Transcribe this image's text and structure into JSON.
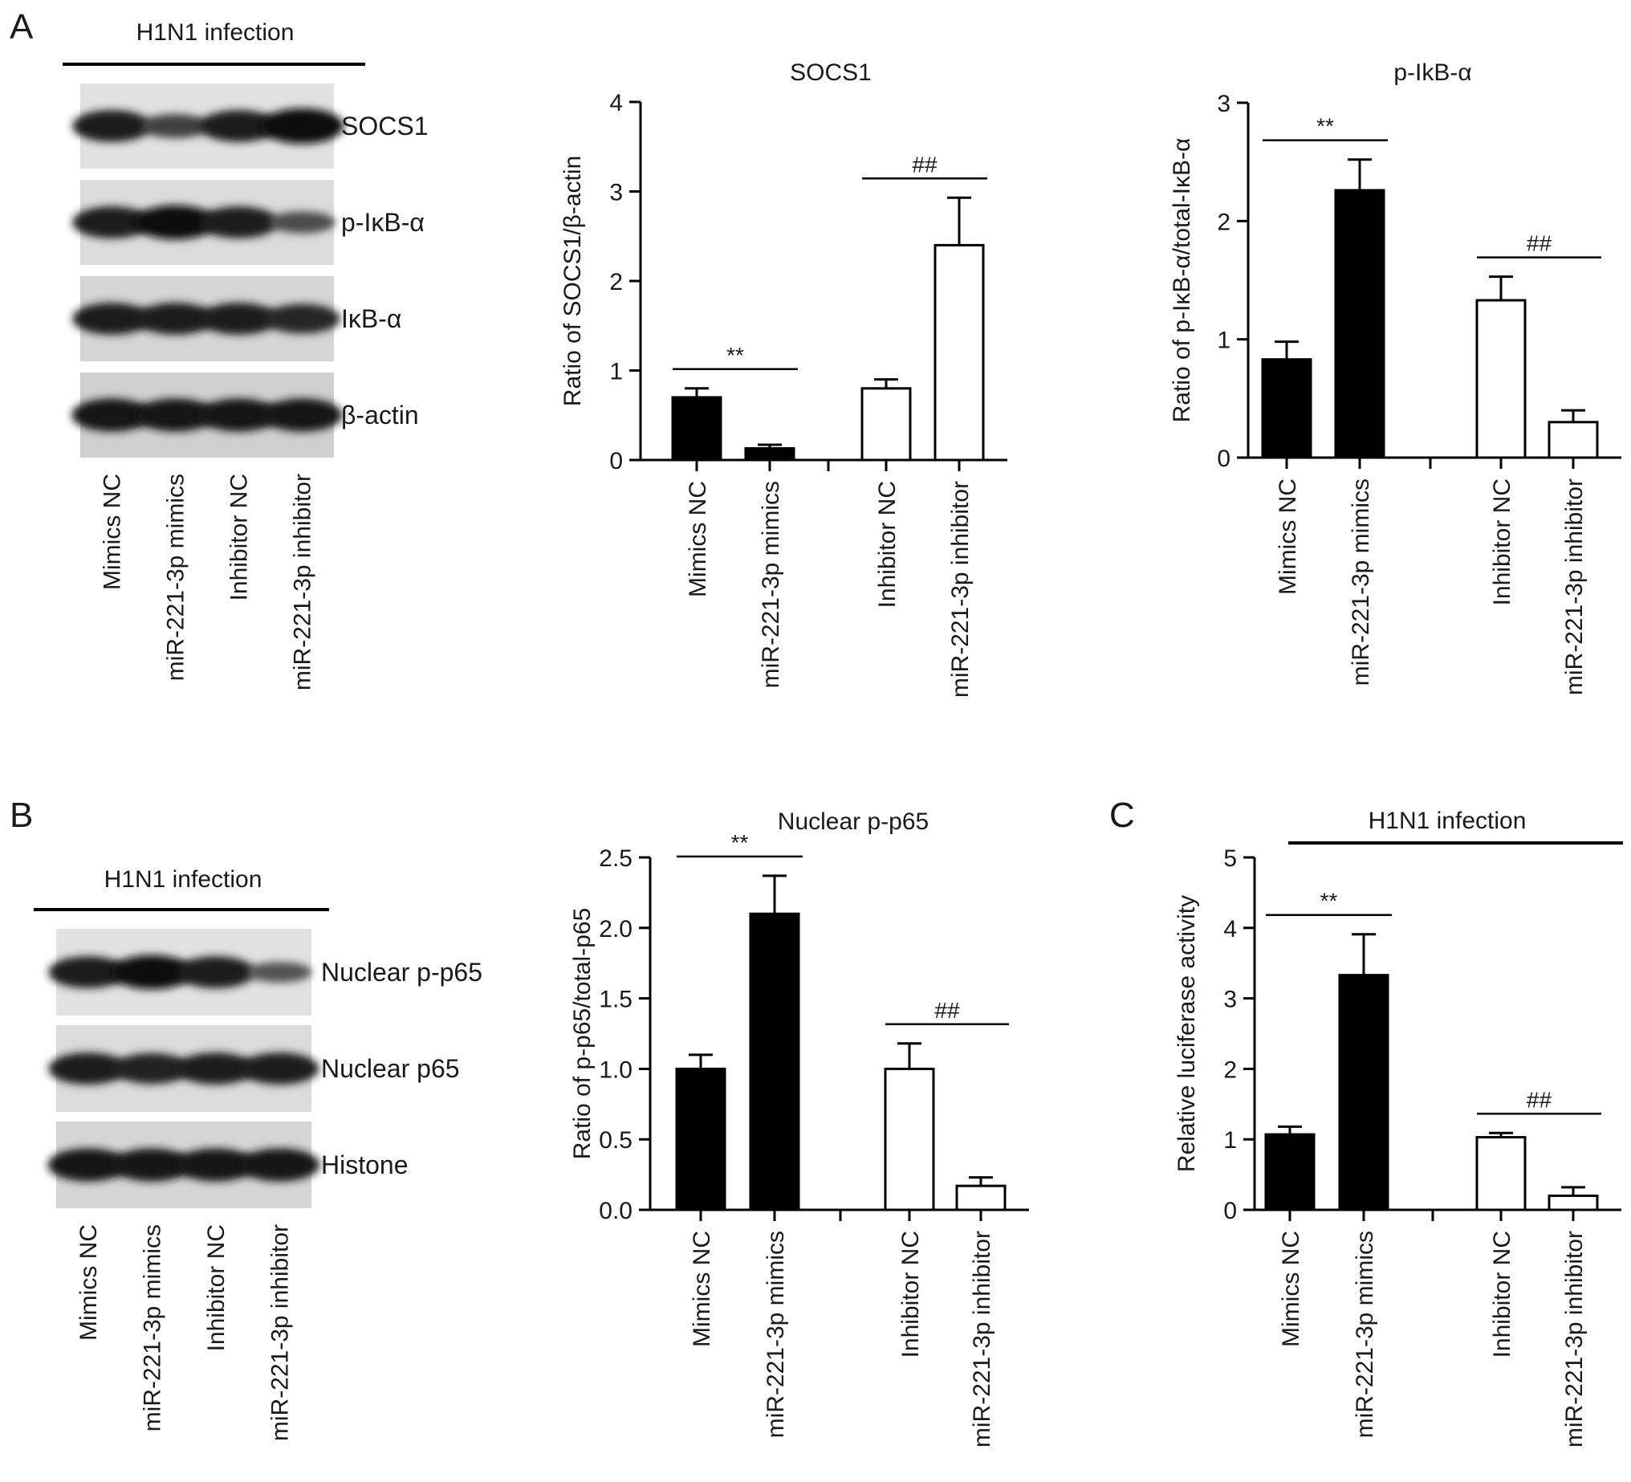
{
  "panel_letters": [
    "A",
    "B",
    "C"
  ],
  "groups": [
    "Mimics NC",
    "miR-221-3p mimics",
    "Inhibitor NC",
    "miR-221-3p inhibitor"
  ],
  "blot_a": {
    "header": "H1N1 infection",
    "bands": [
      {
        "label": "SOCS1",
        "intensity": [
          0.85,
          0.5,
          0.85,
          1.0
        ]
      },
      {
        "label": "p-IκB-α",
        "intensity": [
          0.85,
          0.95,
          0.85,
          0.4
        ]
      },
      {
        "label": "IκB-α",
        "intensity": [
          0.85,
          0.85,
          0.85,
          0.75
        ]
      },
      {
        "label": "β-actin",
        "intensity": [
          0.9,
          0.9,
          0.9,
          0.9
        ]
      }
    ]
  },
  "blot_b": {
    "header": "H1N1 infection",
    "bands": [
      {
        "label": "Nuclear p-p65",
        "intensity": [
          0.85,
          0.95,
          0.85,
          0.35
        ]
      },
      {
        "label": "Nuclear p65",
        "intensity": [
          0.85,
          0.8,
          0.85,
          0.85
        ]
      },
      {
        "label": "Histone",
        "intensity": [
          0.9,
          0.9,
          0.9,
          0.9
        ]
      }
    ]
  },
  "chart_data": [
    {
      "type": "bar",
      "title": "SOCS1",
      "ylabel": "Ratio of SOCS1/β-actin",
      "ylim": [
        0,
        4
      ],
      "yticks": [
        "0",
        "1",
        "2",
        "3",
        "4"
      ],
      "categories": [
        "Mimics NC",
        "miR-221-3p mimics",
        "Inhibitor NC",
        "miR-221-3p inhibitor"
      ],
      "values": [
        0.7,
        0.13,
        0.8,
        2.4
      ],
      "errors": [
        0.1,
        0.04,
        0.1,
        0.53
      ],
      "fills": [
        "#000000",
        "#000000",
        "#ffffff",
        "#ffffff"
      ],
      "significance": [
        {
          "label": "**",
          "pair": [
            0,
            1
          ]
        },
        {
          "label": "##",
          "pair": [
            2,
            3
          ]
        }
      ]
    },
    {
      "type": "bar",
      "title": "p-IkB-α",
      "ylabel": "Ratio of p-IκB-α/total-IκB-α",
      "ylim": [
        0,
        3
      ],
      "yticks": [
        "0",
        "1",
        "2",
        "3"
      ],
      "categories": [
        "Mimics NC",
        "miR-221-3p mimics",
        "Inhibitor NC",
        "miR-221-3p inhibitor"
      ],
      "values": [
        0.83,
        2.26,
        1.33,
        0.3
      ],
      "errors": [
        0.15,
        0.26,
        0.2,
        0.1
      ],
      "fills": [
        "#000000",
        "#000000",
        "#ffffff",
        "#ffffff"
      ],
      "significance": [
        {
          "label": "**",
          "pair": [
            0,
            1
          ]
        },
        {
          "label": "##",
          "pair": [
            2,
            3
          ]
        }
      ]
    },
    {
      "type": "bar",
      "title": "Nuclear p-p65",
      "ylabel": "Ratio of p-p65/total-p65",
      "ylim": [
        0,
        2.5
      ],
      "yticks": [
        "0.0",
        "0.5",
        "1.0",
        "1.5",
        "2.0",
        "2.5"
      ],
      "categories": [
        "Mimics NC",
        "miR-221-3p mimics",
        "Inhibitor NC",
        "miR-221-3p inhibitor"
      ],
      "values": [
        1.0,
        2.1,
        1.0,
        0.17
      ],
      "errors": [
        0.1,
        0.27,
        0.18,
        0.06
      ],
      "fills": [
        "#000000",
        "#000000",
        "#ffffff",
        "#ffffff"
      ],
      "significance": [
        {
          "label": "**",
          "pair": [
            0,
            1
          ]
        },
        {
          "label": "##",
          "pair": [
            2,
            3
          ]
        }
      ]
    },
    {
      "type": "bar",
      "header": "H1N1 infection",
      "ylabel": "Relative luciferase activity",
      "ylim": [
        0,
        5
      ],
      "yticks": [
        "0",
        "1",
        "2",
        "3",
        "4",
        "5"
      ],
      "categories": [
        "Mimics NC",
        "miR-221-3p mimics",
        "Inhibitor NC",
        "miR-221-3p inhibitor"
      ],
      "values": [
        1.07,
        3.33,
        1.03,
        0.2
      ],
      "errors": [
        0.11,
        0.58,
        0.06,
        0.12
      ],
      "fills": [
        "#000000",
        "#000000",
        "#ffffff",
        "#ffffff"
      ],
      "significance": [
        {
          "label": "**",
          "pair": [
            0,
            1
          ]
        },
        {
          "label": "##",
          "pair": [
            2,
            3
          ]
        }
      ]
    }
  ]
}
